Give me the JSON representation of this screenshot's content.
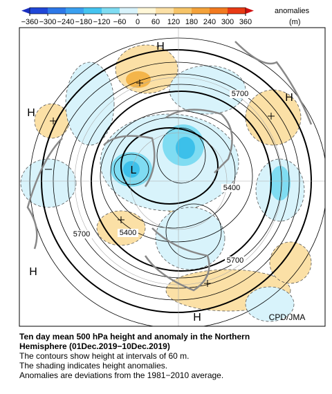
{
  "colorbar": {
    "ticks": [
      "−360",
      "−300",
      "−240",
      "−180",
      "−120",
      "−60",
      "0",
      "60",
      "120",
      "180",
      "240",
      "300",
      "360"
    ],
    "unit_label": "anomalies",
    "unit": "(m)"
  },
  "map": {
    "highs": [
      "H",
      "H",
      "H",
      "H",
      "H"
    ],
    "lows": [
      "L"
    ],
    "contour_labels": [
      "5700",
      "5700",
      "5700",
      "5400",
      "5400"
    ],
    "credit": "CPD/JMA"
  },
  "caption": {
    "title_lines": [
      "Ten day mean 500 hPa height and anomaly in the Northern",
      "Hemisphere (01Dec.2019−10Dec.2019)"
    ],
    "lines": [
      "The contours show height at intervals of 60 m.",
      "The shading indicates height anomalies.",
      "Anomalies are deviations from the 1981−2010 average."
    ]
  }
}
